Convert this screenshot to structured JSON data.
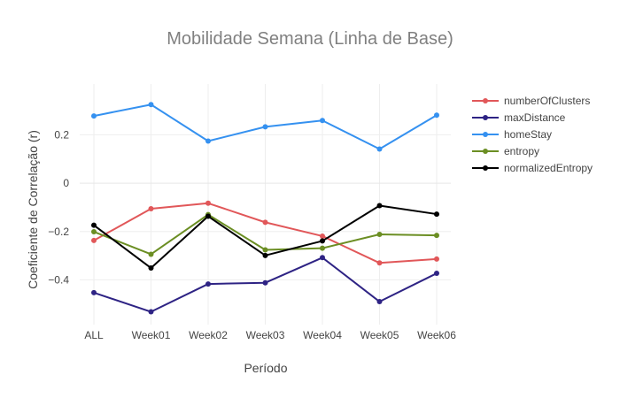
{
  "chart_data": {
    "type": "line",
    "title": "Mobilidade Semana (Linha de Base)",
    "xlabel": "Período",
    "ylabel": "Coeficiente de Correlação (r)",
    "categories": [
      "ALL",
      "Week01",
      "Week02",
      "Week03",
      "Week04",
      "Week05",
      "Week06"
    ],
    "ylim": [
      -0.585,
      0.41
    ],
    "yticks": [
      0.2,
      0,
      -0.2,
      -0.4
    ],
    "ytick_labels": [
      "0.2",
      "0",
      "−0.2",
      "−0.4"
    ],
    "grid": true,
    "legend_position": "top-right",
    "series": [
      {
        "name": "numberOfClusters",
        "color": "#e15759",
        "values": [
          -0.237,
          -0.106,
          -0.083,
          -0.162,
          -0.219,
          -0.33,
          -0.314
        ]
      },
      {
        "name": "maxDistance",
        "color": "#2e2384",
        "values": [
          -0.453,
          -0.532,
          -0.417,
          -0.412,
          -0.308,
          -0.49,
          -0.373
        ]
      },
      {
        "name": "homeStay",
        "color": "#3591f0",
        "values": [
          0.278,
          0.325,
          0.174,
          0.233,
          0.259,
          0.141,
          0.281
        ]
      },
      {
        "name": "entropy",
        "color": "#6b8e23",
        "values": [
          -0.201,
          -0.294,
          -0.13,
          -0.276,
          -0.269,
          -0.212,
          -0.216
        ]
      },
      {
        "name": "normalizedEntropy",
        "color": "#000000",
        "values": [
          -0.174,
          -0.351,
          -0.137,
          -0.299,
          -0.239,
          -0.093,
          -0.128
        ]
      }
    ]
  }
}
